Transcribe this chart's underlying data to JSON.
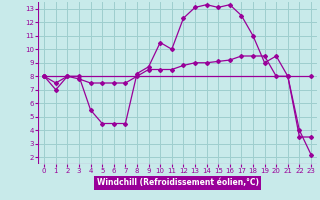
{
  "xlabel": "Windchill (Refroidissement éolien,°C)",
  "background_color": "#c8eaea",
  "grid_color": "#9ecece",
  "line_color": "#990099",
  "xlim": [
    -0.5,
    23.5
  ],
  "ylim": [
    1.5,
    13.5
  ],
  "xticks": [
    0,
    1,
    2,
    3,
    4,
    5,
    6,
    7,
    8,
    9,
    10,
    11,
    12,
    13,
    14,
    15,
    16,
    17,
    18,
    19,
    20,
    21,
    22,
    23
  ],
  "yticks": [
    2,
    3,
    4,
    5,
    6,
    7,
    8,
    9,
    10,
    11,
    12,
    13
  ],
  "line1_x": [
    0,
    1,
    2,
    3,
    4,
    5,
    6,
    7,
    8,
    9,
    10,
    11,
    12,
    13,
    14,
    15,
    16,
    17,
    18,
    19,
    20,
    21,
    22,
    23
  ],
  "line1_y": [
    8,
    7,
    8,
    8,
    5.5,
    4.5,
    4.5,
    4.5,
    8.2,
    8.7,
    10.5,
    10.0,
    12.3,
    13.1,
    13.3,
    13.1,
    13.3,
    12.5,
    11.0,
    9.0,
    9.5,
    8.0,
    3.5,
    3.5
  ],
  "line2_x": [
    0,
    1,
    2,
    3,
    4,
    5,
    6,
    7,
    8,
    9,
    10,
    11,
    12,
    13,
    14,
    15,
    16,
    17,
    18,
    19,
    20,
    21,
    22,
    23
  ],
  "line2_y": [
    8,
    7.5,
    8.0,
    7.8,
    7.5,
    7.5,
    7.5,
    7.5,
    8.0,
    8.5,
    8.5,
    8.5,
    8.8,
    9.0,
    9.0,
    9.1,
    9.2,
    9.5,
    9.5,
    9.5,
    8.0,
    8.0,
    4.0,
    2.2
  ],
  "line3_x": [
    0,
    23
  ],
  "line3_y": [
    8,
    8
  ]
}
